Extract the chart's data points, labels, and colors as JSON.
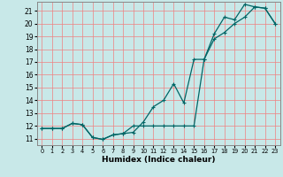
{
  "xlabel": "Humidex (Indice chaleur)",
  "bg_color": "#c8e8e8",
  "grid_color": "#f08080",
  "line_color": "#006666",
  "xlim": [
    -0.5,
    23.5
  ],
  "ylim": [
    10.5,
    21.7
  ],
  "xticks": [
    0,
    1,
    2,
    3,
    4,
    5,
    6,
    7,
    8,
    9,
    10,
    11,
    12,
    13,
    14,
    15,
    16,
    17,
    18,
    19,
    20,
    21,
    22,
    23
  ],
  "yticks": [
    11,
    12,
    13,
    14,
    15,
    16,
    17,
    18,
    19,
    20,
    21
  ],
  "line1_x": [
    0,
    1,
    2,
    3,
    4,
    5,
    6,
    7,
    8,
    9,
    10,
    11,
    12,
    13,
    14,
    15,
    16,
    17,
    18,
    19,
    20,
    21,
    22,
    23
  ],
  "line1_y": [
    11.8,
    11.8,
    11.8,
    12.2,
    12.1,
    11.1,
    10.95,
    11.3,
    11.4,
    11.5,
    12.3,
    13.5,
    14.0,
    15.3,
    13.8,
    17.2,
    17.2,
    19.2,
    20.5,
    20.3,
    21.5,
    21.3,
    21.2,
    20.0
  ],
  "line2_x": [
    0,
    1,
    2,
    3,
    4,
    5,
    6,
    7,
    8,
    9,
    10,
    11,
    12,
    13,
    14,
    15,
    16,
    17,
    18,
    19,
    20,
    21,
    22,
    23
  ],
  "line2_y": [
    11.8,
    11.8,
    11.8,
    12.2,
    12.1,
    11.1,
    10.95,
    11.3,
    11.4,
    12.0,
    12.0,
    12.0,
    12.0,
    12.0,
    12.0,
    12.0,
    17.2,
    18.8,
    19.3,
    20.0,
    20.5,
    21.3,
    21.2,
    20.0
  ]
}
